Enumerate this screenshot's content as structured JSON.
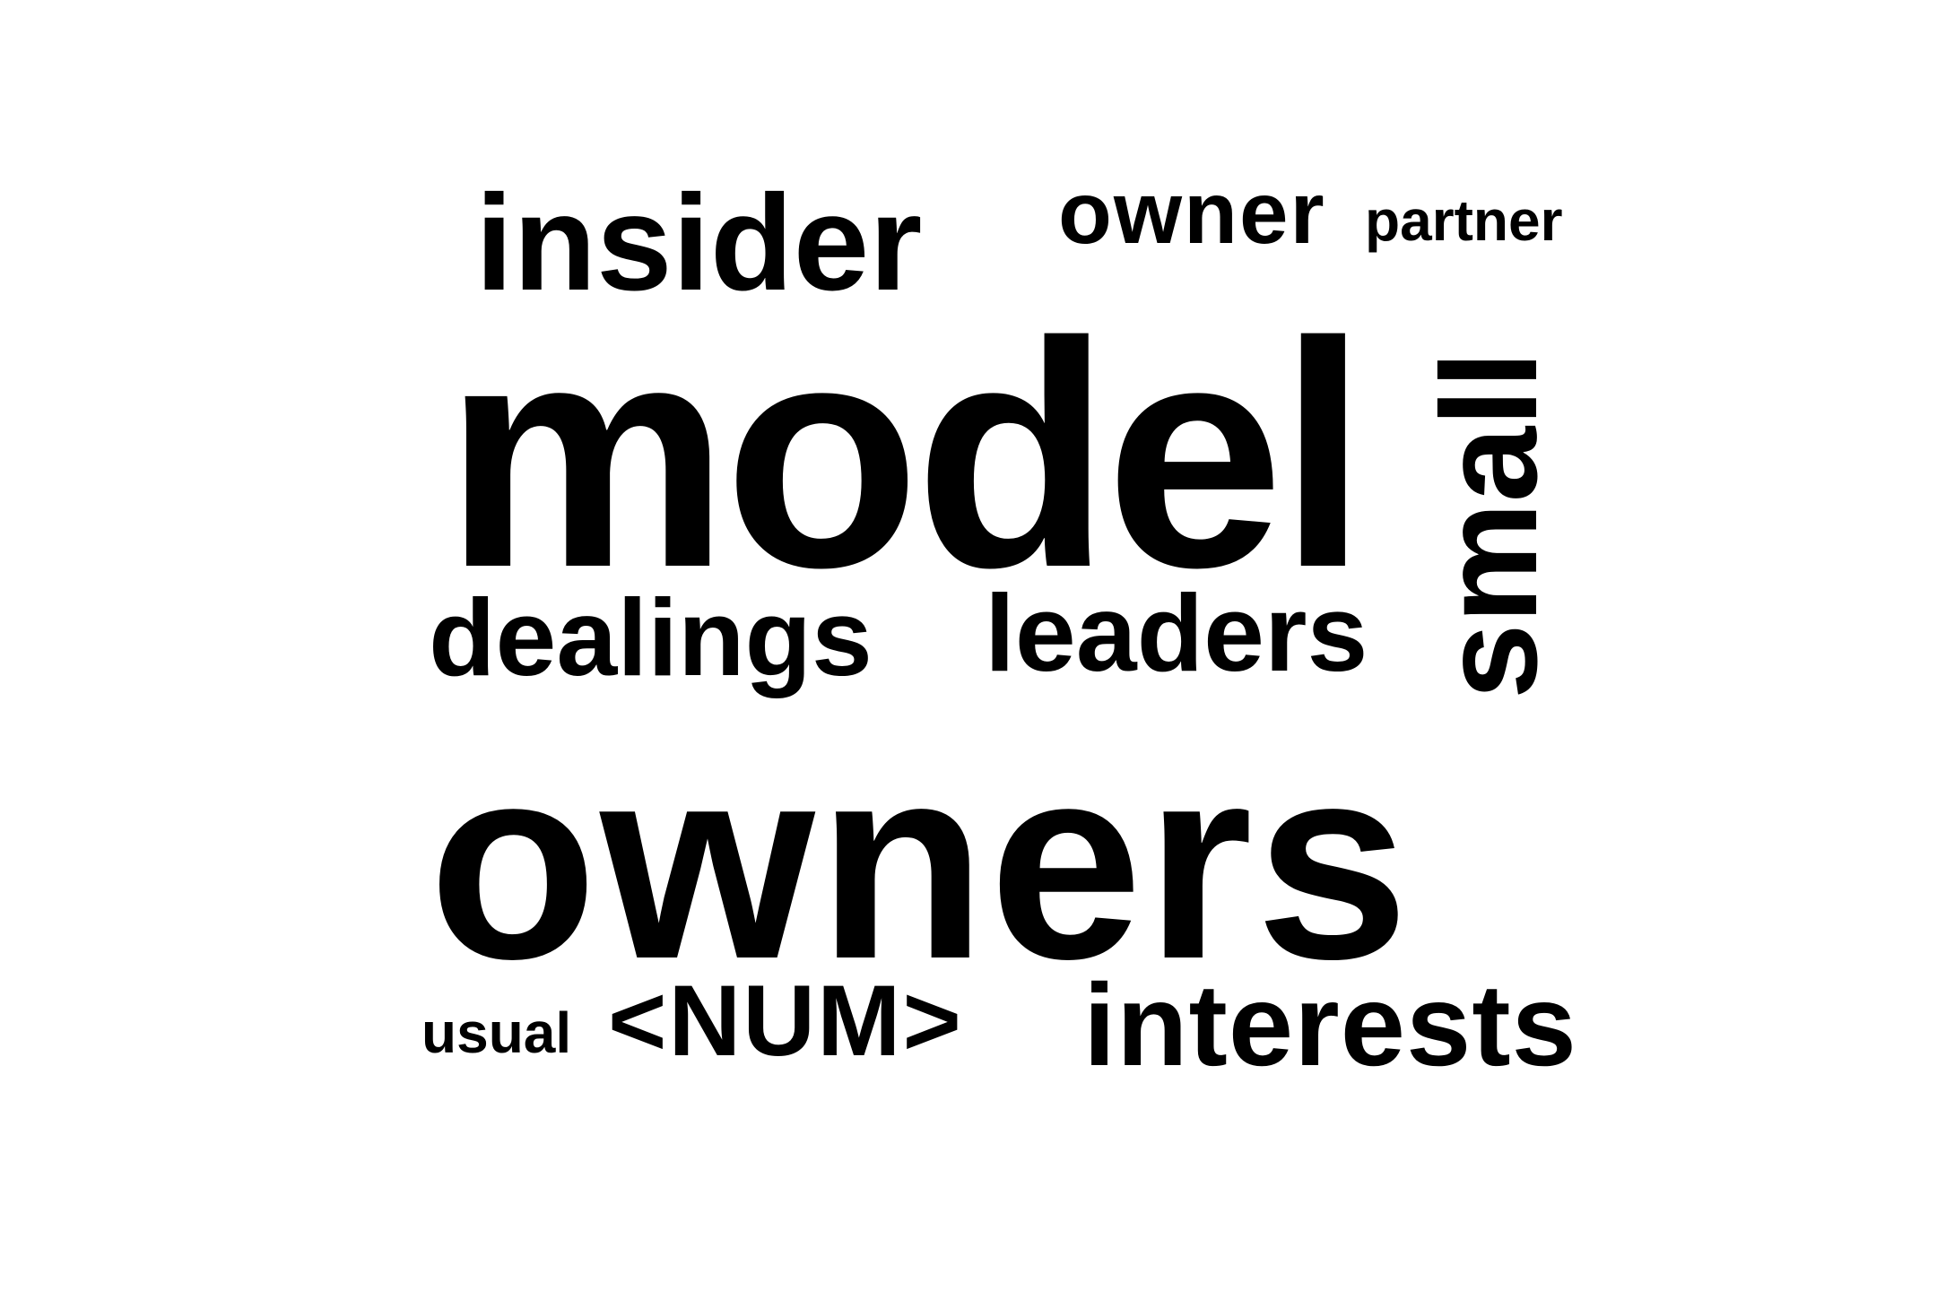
{
  "word_cloud": {
    "text_color": "#000000",
    "background_color": "#ffffff",
    "words": [
      {
        "text": "insider"
      },
      {
        "text": "owner"
      },
      {
        "text": "partner"
      },
      {
        "text": "model"
      },
      {
        "text": "small",
        "orientation": "vertical"
      },
      {
        "text": "dealings"
      },
      {
        "text": "leaders"
      },
      {
        "text": "owners"
      },
      {
        "text": "usual"
      },
      {
        "text": "<NUM>"
      },
      {
        "text": "interests"
      }
    ]
  }
}
